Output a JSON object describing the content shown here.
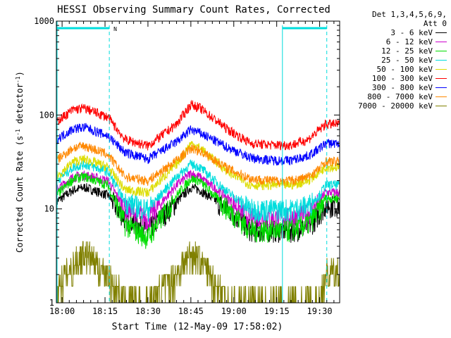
{
  "chart_data": {
    "type": "line",
    "title": "HESSI Observing Summary Count Rates, Corrected",
    "xlabel": "Start Time (12-May-09 17:58:02)",
    "ylabel_main": "Corrected Count Rate (s",
    "ylabel_sup1": "-1",
    "ylabel_mid": " detector",
    "ylabel_sup2": "-1",
    "ylabel_end": ")",
    "y_scale": "log",
    "ylim": [
      1,
      1000
    ],
    "xlim_minutes": [
      -2,
      97
    ],
    "x_ticks": [
      {
        "label": "18:00",
        "minute": 0
      },
      {
        "label": "18:15",
        "minute": 15
      },
      {
        "label": "18:30",
        "minute": 30
      },
      {
        "label": "18:45",
        "minute": 45
      },
      {
        "label": "19:00",
        "minute": 60
      },
      {
        "label": "19:15",
        "minute": 75
      },
      {
        "label": "19:30",
        "minute": 90
      }
    ],
    "y_ticks": [
      {
        "label": "1",
        "value": 1
      },
      {
        "label": "10",
        "value": 10
      },
      {
        "label": "100",
        "value": 100
      },
      {
        "label": "1000",
        "value": 1000
      }
    ],
    "night_boundaries_minutes": [
      16.5,
      77.0,
      92.5
    ],
    "saa_annotation": "N",
    "detectors_header": "Det 1,3,4,5,6,9,",
    "attenuator_header": "Att 0",
    "legend_position": "right",
    "x_minutes": [
      -2,
      4,
      8,
      16,
      22,
      30,
      40,
      45,
      48,
      58,
      66,
      74,
      80,
      86,
      90,
      92
    ],
    "series": [
      {
        "name": "3 - 6 keV",
        "color": "#000000",
        "values": [
          12,
          16,
          17,
          14,
          8,
          6,
          12,
          17,
          16,
          10,
          6,
          6,
          6,
          6.5,
          9,
          11
        ]
      },
      {
        "name": "6 - 12 keV",
        "color": "#cc00cc",
        "values": [
          16,
          22,
          23,
          20,
          10,
          8,
          18,
          24,
          22,
          13,
          8,
          8,
          8,
          9,
          12,
          15
        ]
      },
      {
        "name": "12 - 25 keV",
        "color": "#00dd00",
        "values": [
          14,
          21,
          22,
          18,
          7,
          5,
          14,
          21,
          20,
          10,
          6,
          6,
          6,
          7,
          10,
          13
        ]
      },
      {
        "name": "25 - 50 keV",
        "color": "#00dddd",
        "values": [
          20,
          28,
          30,
          25,
          12,
          10,
          22,
          30,
          28,
          15,
          10,
          10,
          10,
          11,
          14,
          18
        ]
      },
      {
        "name": "50 - 100 keV",
        "color": "#dddd00",
        "values": [
          22,
          32,
          34,
          28,
          16,
          15,
          30,
          50,
          45,
          25,
          18,
          18,
          18,
          20,
          25,
          28
        ]
      },
      {
        "name": "100 - 300 keV",
        "color": "#ff0000",
        "values": [
          85,
          115,
          118,
          95,
          55,
          47,
          80,
          130,
          120,
          70,
          50,
          48,
          48,
          55,
          70,
          80
        ]
      },
      {
        "name": "300 - 800 keV",
        "color": "#0000ff",
        "values": [
          55,
          72,
          74,
          60,
          40,
          34,
          52,
          70,
          65,
          45,
          35,
          33,
          33,
          37,
          44,
          50
        ]
      },
      {
        "name": "800 - 7000 keV",
        "color": "#ff8800",
        "values": [
          33,
          45,
          47,
          38,
          22,
          20,
          33,
          44,
          42,
          27,
          21,
          20,
          20,
          22,
          27,
          32
        ]
      },
      {
        "name": "7000 - 20000 keV",
        "color": "#808000",
        "values": [
          1.5,
          2.5,
          3.5,
          2,
          1,
          1,
          2,
          3.5,
          3,
          1,
          1,
          1,
          1,
          1,
          1,
          2
        ]
      }
    ]
  }
}
